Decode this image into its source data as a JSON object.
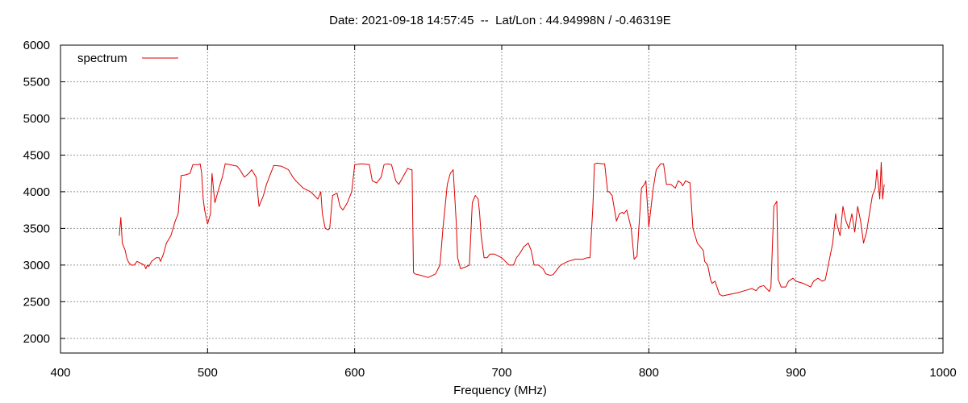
{
  "chart_data": {
    "type": "line",
    "title": "Date: 2021-09-18 14:57:45  --  Lat/Lon : 44.94998N / -0.46319E",
    "xlabel": "Frequency (MHz)",
    "ylabel": "",
    "xlim": [
      400,
      1000
    ],
    "ylim": [
      1800,
      6000
    ],
    "xticks": [
      400,
      500,
      600,
      700,
      800,
      900,
      1000
    ],
    "yticks": [
      2000,
      2500,
      3000,
      3500,
      4000,
      4500,
      5000,
      5500,
      6000
    ],
    "grid": true,
    "legend": {
      "position": "top-left"
    },
    "colors": {
      "series": "#dd0000",
      "grid": "#999999",
      "axis": "#000000"
    },
    "series": [
      {
        "name": "spectrum",
        "x": [
          440,
          441,
          442,
          443,
          444,
          445,
          446,
          447,
          448,
          450,
          452,
          455,
          457,
          458,
          459,
          460,
          462,
          465,
          466,
          467,
          468,
          470,
          472,
          475,
          478,
          480,
          482,
          485,
          488,
          490,
          492,
          494,
          495,
          496,
          497,
          498,
          500,
          502,
          503,
          505,
          507,
          510,
          512,
          515,
          520,
          522,
          525,
          528,
          530,
          533,
          535,
          538,
          540,
          545,
          550,
          555,
          558,
          560,
          565,
          570,
          575,
          577,
          578,
          580,
          582,
          583,
          585,
          588,
          590,
          592,
          595,
          598,
          600,
          605,
          610,
          612,
          615,
          618,
          620,
          622,
          625,
          628,
          630,
          635,
          636,
          638,
          639,
          640,
          641,
          645,
          650,
          655,
          658,
          660,
          663,
          665,
          667,
          669,
          670,
          672,
          675,
          678,
          680,
          682,
          684,
          685,
          686,
          688,
          690,
          692,
          695,
          700,
          705,
          708,
          710,
          712,
          715,
          718,
          720,
          722,
          725,
          728,
          730,
          733,
          735,
          738,
          740,
          745,
          750,
          755,
          758,
          760,
          762,
          763,
          765,
          768,
          770,
          772,
          773,
          775,
          778,
          780,
          782,
          783,
          785,
          788,
          790,
          792,
          795,
          797,
          798,
          800,
          803,
          805,
          808,
          810,
          812,
          815,
          818,
          820,
          822,
          823,
          825,
          828,
          830,
          833,
          835,
          837,
          838,
          840,
          842,
          843,
          845,
          848,
          850,
          855,
          860,
          865,
          870,
          873,
          875,
          878,
          880,
          882,
          883,
          885,
          887,
          888,
          890,
          893,
          895,
          898,
          900,
          905,
          910,
          912,
          915,
          918,
          920,
          923,
          925,
          927,
          928,
          930,
          932,
          934,
          936,
          938,
          940,
          942,
          944,
          946,
          948,
          950,
          952,
          954,
          955,
          956,
          957,
          958,
          959,
          960
        ],
        "values": [
          3400,
          3650,
          3300,
          3250,
          3200,
          3100,
          3050,
          3020,
          3000,
          3000,
          3050,
          3020,
          3000,
          2950,
          3000,
          2980,
          3050,
          3100,
          3100,
          3100,
          3050,
          3150,
          3300,
          3400,
          3600,
          3700,
          4220,
          4230,
          4250,
          4370,
          4370,
          4370,
          4380,
          4250,
          3900,
          3750,
          3560,
          3700,
          4250,
          3850,
          4000,
          4200,
          4380,
          4370,
          4350,
          4300,
          4200,
          4250,
          4300,
          4200,
          3800,
          3950,
          4100,
          4360,
          4350,
          4300,
          4200,
          4150,
          4050,
          4000,
          3900,
          4000,
          3700,
          3500,
          3480,
          3500,
          3950,
          3980,
          3800,
          3750,
          3850,
          4000,
          4370,
          4380,
          4370,
          4150,
          4120,
          4200,
          4370,
          4380,
          4370,
          4150,
          4100,
          4280,
          4320,
          4300,
          4300,
          2900,
          2880,
          2860,
          2830,
          2880,
          3000,
          3500,
          4100,
          4250,
          4300,
          3600,
          3100,
          2950,
          2970,
          3000,
          3850,
          3950,
          3900,
          3700,
          3400,
          3100,
          3100,
          3150,
          3150,
          3100,
          3000,
          3000,
          3100,
          3150,
          3250,
          3300,
          3200,
          3000,
          3000,
          2950,
          2880,
          2860,
          2870,
          2950,
          3000,
          3050,
          3080,
          3080,
          3100,
          3100,
          3800,
          4380,
          4390,
          4380,
          4380,
          4000,
          4000,
          3950,
          3600,
          3700,
          3720,
          3700,
          3750,
          3500,
          3080,
          3120,
          4050,
          4100,
          4150,
          3520,
          4050,
          4300,
          4380,
          4380,
          4100,
          4100,
          4050,
          4150,
          4120,
          4080,
          4150,
          4120,
          3500,
          3300,
          3250,
          3200,
          3050,
          3000,
          2800,
          2750,
          2780,
          2600,
          2580,
          2600,
          2620,
          2650,
          2680,
          2650,
          2700,
          2720,
          2680,
          2640,
          2700,
          3800,
          3870,
          2800,
          2700,
          2700,
          2780,
          2820,
          2780,
          2750,
          2700,
          2780,
          2820,
          2780,
          2800,
          3100,
          3300,
          3700,
          3550,
          3400,
          3800,
          3600,
          3500,
          3700,
          3450,
          3800,
          3600,
          3300,
          3450,
          3700,
          3950,
          4050,
          4300,
          4100,
          3900,
          4400,
          3900,
          4100
        ]
      }
    ]
  }
}
